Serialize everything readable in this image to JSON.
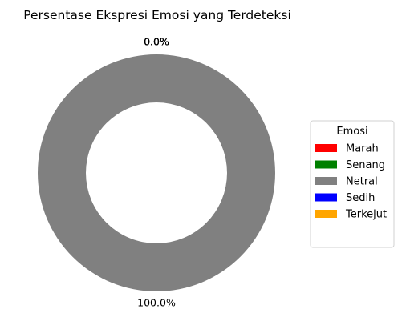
{
  "chart_data": {
    "type": "pie",
    "style": "donut",
    "title": "Persentase Ekspresi Emosi yang Terdeteksi",
    "categories": [
      "Marah",
      "Senang",
      "Netral",
      "Sedih",
      "Terkejut"
    ],
    "values": [
      0,
      0,
      100,
      0,
      0
    ],
    "labels": [
      "0.0%",
      "0.0%",
      "100.0%",
      "0.0%",
      "0.0%"
    ],
    "colors": [
      "#ff0000",
      "#008000",
      "#808080",
      "#0000ff",
      "#ffa500"
    ],
    "legend": {
      "title": "Emosi",
      "placement": "right"
    }
  }
}
